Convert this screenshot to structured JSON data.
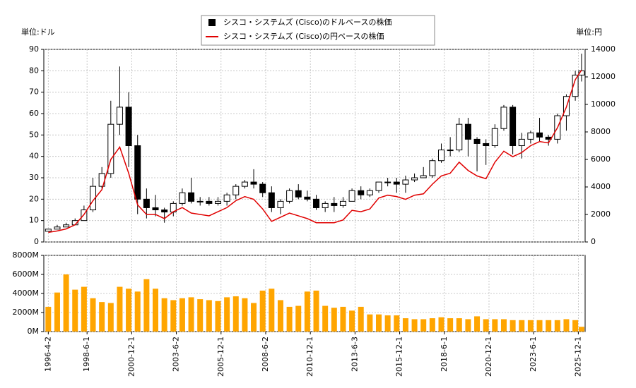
{
  "chart_data": [
    {
      "type": "candlestick",
      "legend": "top",
      "grid": true,
      "y_label": "単位:ドル",
      "y2_label": "単位:円",
      "xlim": [
        1996.0,
        2026.3
      ],
      "ylim": [
        0,
        90
      ],
      "yticks": [
        0,
        10,
        20,
        30,
        40,
        50,
        60,
        70,
        80,
        90
      ],
      "y2lim": [
        0,
        14000
      ],
      "y2ticks": [
        0,
        2000,
        4000,
        6000,
        8000,
        10000,
        12000,
        14000
      ],
      "x": [
        1996.25,
        1996.75,
        1997.25,
        1997.75,
        1998.25,
        1998.75,
        1999.25,
        1999.75,
        2000.25,
        2000.75,
        2001.25,
        2001.75,
        2002.25,
        2002.75,
        2003.25,
        2003.75,
        2004.25,
        2004.75,
        2005.25,
        2005.75,
        2006.25,
        2006.75,
        2007.25,
        2007.75,
        2008.25,
        2008.75,
        2009.25,
        2009.75,
        2010.25,
        2010.75,
        2011.25,
        2011.75,
        2012.25,
        2012.75,
        2013.25,
        2013.75,
        2014.25,
        2014.75,
        2015.25,
        2015.75,
        2016.25,
        2016.75,
        2017.25,
        2017.75,
        2018.25,
        2018.75,
        2019.25,
        2019.75,
        2020.25,
        2020.75,
        2021.25,
        2021.75,
        2022.25,
        2022.75,
        2023.25,
        2023.75,
        2024.25,
        2024.75,
        2025.25,
        2025.75,
        2026.1
      ],
      "series": [
        {
          "name": "シスコ・システムズ (Cisco)のドルベースの株価",
          "color": "#000000",
          "up_color": "#ffffff",
          "down_color": "#000000",
          "open": [
            5,
            6,
            7,
            8,
            10,
            15,
            26,
            32,
            55,
            63,
            45,
            20,
            16,
            15,
            14,
            18,
            23,
            19,
            19,
            18,
            19,
            22,
            26,
            28,
            27,
            23,
            16,
            19,
            24,
            21,
            20,
            16,
            18,
            17,
            19,
            24,
            22,
            24,
            28,
            28,
            27,
            29,
            30,
            31,
            38,
            43,
            43,
            55,
            48,
            46,
            45,
            53,
            63,
            45,
            48,
            51,
            49,
            48,
            59,
            68,
            78
          ],
          "high": [
            6,
            8,
            9,
            11,
            17,
            30,
            35,
            66,
            82,
            70,
            50,
            25,
            22,
            16,
            19,
            25,
            30,
            21,
            21,
            21,
            23,
            27,
            29,
            34,
            28,
            26,
            20,
            25,
            27,
            24,
            22,
            19,
            21,
            21,
            25,
            26,
            25,
            28,
            30,
            30,
            31,
            32,
            35,
            39,
            46,
            49,
            58,
            58,
            49,
            48,
            55,
            64,
            64,
            51,
            52,
            58,
            50,
            60,
            69,
            80,
            88
          ],
          "low": [
            5,
            6,
            7,
            8,
            10,
            14,
            25,
            30,
            50,
            35,
            13,
            11,
            12,
            9,
            12,
            17,
            18,
            17,
            17,
            17,
            17,
            20,
            25,
            25,
            21,
            14,
            13,
            18,
            20,
            19,
            15,
            14,
            14,
            16,
            19,
            20,
            21,
            23,
            26,
            23,
            23,
            28,
            30,
            30,
            37,
            40,
            42,
            40,
            33,
            36,
            44,
            52,
            41,
            39,
            46,
            47,
            45,
            46,
            52,
            66,
            75
          ],
          "close": [
            6,
            7,
            8,
            10,
            15,
            26,
            32,
            55,
            63,
            45,
            20,
            16,
            15,
            14,
            18,
            23,
            19,
            19,
            18,
            19,
            22,
            26,
            28,
            27,
            23,
            16,
            19,
            24,
            21,
            20,
            16,
            18,
            17,
            19,
            24,
            22,
            24,
            28,
            28,
            27,
            29,
            30,
            31,
            38,
            43,
            43,
            55,
            48,
            46,
            45,
            53,
            63,
            45,
            48,
            51,
            49,
            48,
            59,
            68,
            78,
            80
          ]
        },
        {
          "name": "シスコ・システムズ (Cisco)の円ベースの株価",
          "color": "#e00000",
          "axis": "y2",
          "values": [
            700,
            800,
            950,
            1250,
            2000,
            3000,
            3800,
            6000,
            6900,
            5000,
            2700,
            2000,
            2000,
            1700,
            2200,
            2500,
            2100,
            2000,
            1900,
            2200,
            2500,
            3000,
            3300,
            3100,
            2400,
            1500,
            1800,
            2100,
            1900,
            1700,
            1400,
            1400,
            1400,
            1600,
            2300,
            2200,
            2400,
            3200,
            3400,
            3300,
            3100,
            3400,
            3500,
            4200,
            4800,
            5000,
            5800,
            5200,
            4800,
            4600,
            5800,
            6600,
            6200,
            6500,
            7000,
            7300,
            7200,
            8300,
            9800,
            11800,
            12500
          ]
        }
      ]
    },
    {
      "type": "bar",
      "color": "#ffa500",
      "grid": true,
      "xlim": [
        1996.0,
        2026.3
      ],
      "ylim": [
        0,
        8000
      ],
      "yticks": [
        {
          "value": 0,
          "label": "0M"
        },
        {
          "value": 2000,
          "label": "2000M"
        },
        {
          "value": 4000,
          "label": "4000M"
        },
        {
          "value": 6000,
          "label": "6000M"
        },
        {
          "value": 8000,
          "label": "8000M"
        }
      ],
      "xticks": [
        {
          "value": 1996.25,
          "label": "1996-4-2"
        },
        {
          "value": 1998.42,
          "label": "1998-6-1"
        },
        {
          "value": 2000.92,
          "label": "2000-12-1"
        },
        {
          "value": 2003.42,
          "label": "2003-6-2"
        },
        {
          "value": 2005.92,
          "label": "2005-12-1"
        },
        {
          "value": 2008.42,
          "label": "2008-6-2"
        },
        {
          "value": 2010.92,
          "label": "2010-12-1"
        },
        {
          "value": 2013.42,
          "label": "2013-6-3"
        },
        {
          "value": 2015.92,
          "label": "2015-12-1"
        },
        {
          "value": 2018.42,
          "label": "2018-6-1"
        },
        {
          "value": 2020.92,
          "label": "2020-12-1"
        },
        {
          "value": 2023.42,
          "label": "2023-6-1"
        },
        {
          "value": 2025.92,
          "label": "2025-12-1"
        }
      ],
      "x": [
        1996.25,
        1996.75,
        1997.25,
        1997.75,
        1998.25,
        1998.75,
        1999.25,
        1999.75,
        2000.25,
        2000.75,
        2001.25,
        2001.75,
        2002.25,
        2002.75,
        2003.25,
        2003.75,
        2004.25,
        2004.75,
        2005.25,
        2005.75,
        2006.25,
        2006.75,
        2007.25,
        2007.75,
        2008.25,
        2008.75,
        2009.25,
        2009.75,
        2010.25,
        2010.75,
        2011.25,
        2011.75,
        2012.25,
        2012.75,
        2013.25,
        2013.75,
        2014.25,
        2014.75,
        2015.25,
        2015.75,
        2016.25,
        2016.75,
        2017.25,
        2017.75,
        2018.25,
        2018.75,
        2019.25,
        2019.75,
        2020.25,
        2020.75,
        2021.25,
        2021.75,
        2022.25,
        2022.75,
        2023.25,
        2023.75,
        2024.25,
        2024.75,
        2025.25,
        2025.75,
        2026.1
      ],
      "values": [
        2600,
        4100,
        6000,
        4400,
        4700,
        3500,
        3100,
        3000,
        4700,
        4500,
        4200,
        5500,
        4500,
        3500,
        3300,
        3500,
        3600,
        3400,
        3300,
        3200,
        3600,
        3700,
        3500,
        3000,
        4300,
        4500,
        3300,
        2600,
        2700,
        4200,
        4300,
        2700,
        2500,
        2600,
        2200,
        2600,
        1800,
        1800,
        1700,
        1700,
        1400,
        1300,
        1300,
        1400,
        1500,
        1400,
        1400,
        1300,
        1600,
        1300,
        1300,
        1300,
        1200,
        1200,
        1200,
        1200,
        1200,
        1200,
        1300,
        1200,
        500
      ]
    }
  ]
}
